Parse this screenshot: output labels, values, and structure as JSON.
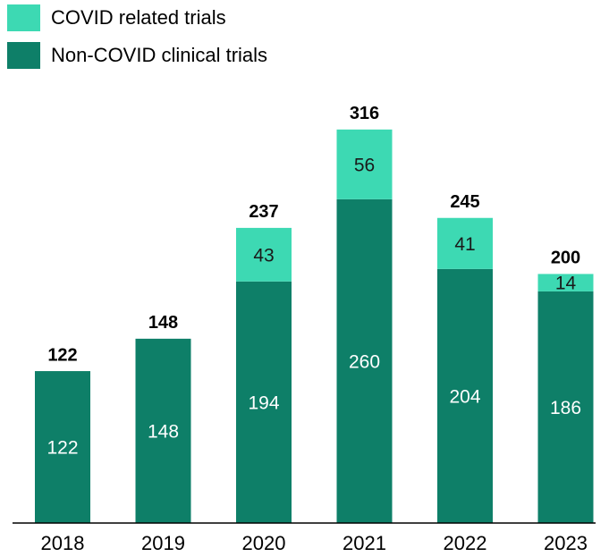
{
  "chart_data": {
    "type": "stacked_bar",
    "categories": [
      "2018",
      "2019",
      "2020",
      "2021",
      "2022",
      "2023"
    ],
    "series": [
      {
        "name": "Non-COVID clinical trials",
        "color": "#0e7f68",
        "values": [
          122,
          148,
          194,
          260,
          204,
          186
        ]
      },
      {
        "name": "COVID related trials",
        "color": "#3dd9b3",
        "values": [
          null,
          null,
          43,
          56,
          41,
          14
        ]
      }
    ],
    "totals": [
      122,
      148,
      237,
      316,
      245,
      200
    ],
    "ylim": [
      0,
      420
    ]
  }
}
